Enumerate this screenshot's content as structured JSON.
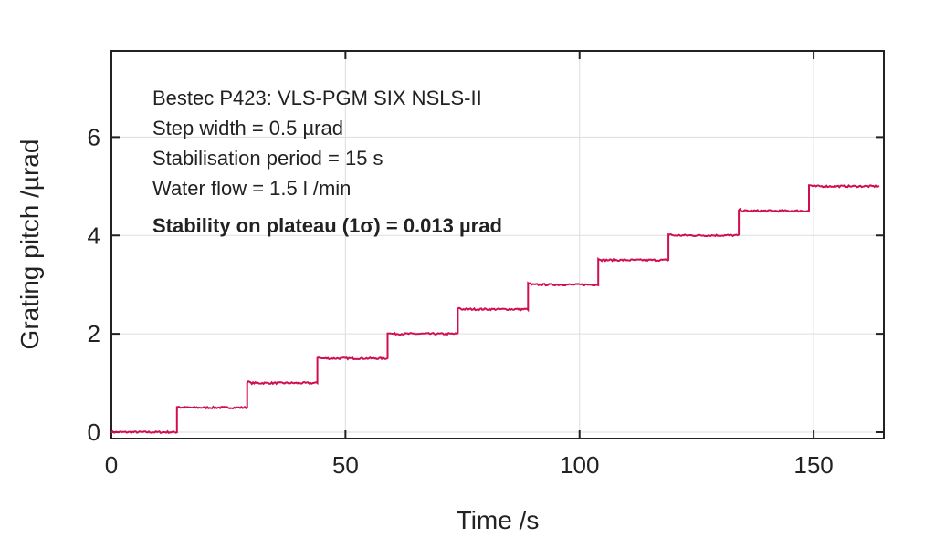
{
  "chart_data": {
    "type": "line",
    "title": "",
    "xlabel": "Time /s",
    "ylabel": "Grating pitch /µrad",
    "xlim": [
      0,
      165
    ],
    "ylim": [
      -0.13,
      7.75
    ],
    "xticks": [
      0,
      50,
      100,
      150
    ],
    "yticks": [
      0,
      2,
      4,
      6
    ],
    "grid": true,
    "series": [
      {
        "name": "Grating pitch",
        "color": "#d0104c",
        "step_times": [
          0,
          14,
          29,
          44,
          59,
          74,
          89,
          104,
          119,
          134,
          149,
          164
        ],
        "levels": [
          0,
          0.5,
          1.0,
          1.5,
          2.0,
          2.5,
          3.0,
          3.5,
          4.0,
          4.5,
          5.0,
          5.0
        ]
      }
    ],
    "annotations": [
      "Bestec P423: VLS-PGM SIX NSLS-II",
      "Step width = 0.5 µrad",
      "Stabilisation period = 15 s",
      "Water flow = 1.5 l /min",
      "Stability on plateau (1σ) = 0.013 µrad"
    ]
  }
}
